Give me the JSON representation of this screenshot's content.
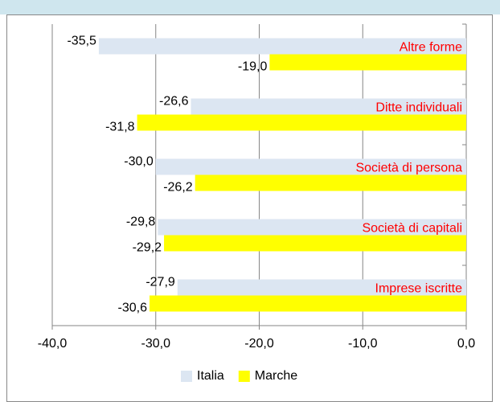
{
  "chart_data": {
    "type": "bar",
    "orientation": "horizontal",
    "categories": [
      "Altre forme",
      "Ditte individuali",
      "Società di persona",
      "Società di capitali",
      "Imprese iscritte"
    ],
    "series": [
      {
        "name": "Italia",
        "color": "#dce6f2",
        "values": [
          -35.5,
          -26.6,
          -30.0,
          -29.8,
          -27.9
        ],
        "value_labels": [
          "-35,5",
          "-26,6",
          "-30,0",
          "-29,8",
          "-27,9"
        ]
      },
      {
        "name": "Marche",
        "color": "#ffff00",
        "values": [
          -19.0,
          -31.8,
          -26.2,
          -29.2,
          -30.6
        ],
        "value_labels": [
          "-19,0",
          "-31,8",
          "-26,2",
          "-29,2",
          "-30,6"
        ]
      }
    ],
    "xlim": [
      -40,
      0
    ],
    "xticks": [
      {
        "value": -40,
        "label": "-40,0"
      },
      {
        "value": -30,
        "label": "-30,0"
      },
      {
        "value": -20,
        "label": "-20,0"
      },
      {
        "value": -10,
        "label": "-10,0"
      },
      {
        "value": 0,
        "label": "0,0"
      }
    ],
    "grid": true,
    "legend": "bottom"
  }
}
